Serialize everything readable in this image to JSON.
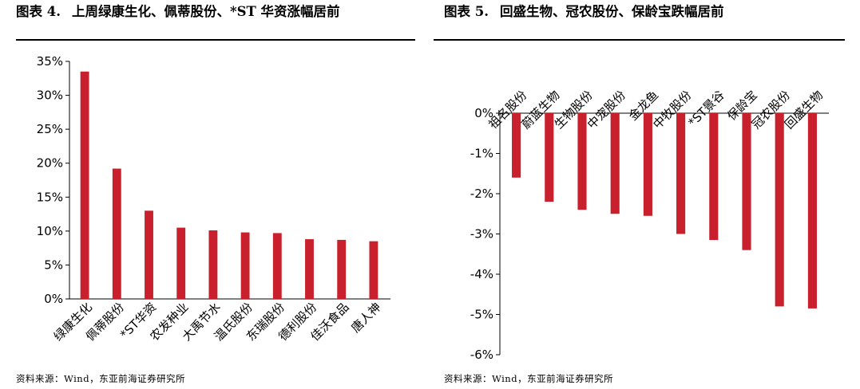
{
  "colors": {
    "bar": "#C8202C",
    "axis": "#000000"
  },
  "left": {
    "title_label": "图表 4.",
    "title_text": "上周绿康生化、佩蒂股份、*ST 华资涨幅居前",
    "source": "资料来源：Wind，东亚前海证券研究所"
  },
  "right": {
    "title_label": "图表 5.",
    "title_text": "回盛生物、冠农股份、保龄宝跌幅居前",
    "source": "资料来源：Wind，东亚前海证券研究所"
  },
  "chart_data": [
    {
      "type": "bar",
      "categories": [
        "绿康生化",
        "佩蒂股份",
        "*ST华资",
        "农发种业",
        "大禹节水",
        "温氏股份",
        "东瑞股份",
        "德利股份",
        "佳沃食品",
        "唐人神"
      ],
      "values": [
        33.5,
        19.2,
        13.0,
        10.5,
        10.1,
        9.8,
        9.7,
        8.8,
        8.7,
        8.5
      ],
      "ylim": [
        0,
        35
      ],
      "yticks": [
        0,
        5,
        10,
        15,
        20,
        25,
        30,
        35
      ],
      "ytick_labels": [
        "0%",
        "5%",
        "10%",
        "15%",
        "20%",
        "25%",
        "30%",
        "35%"
      ],
      "category_position": "bottom"
    },
    {
      "type": "bar",
      "categories": [
        "祖名股份",
        "蔚蓝生物",
        "生物股份",
        "中宠股份",
        "金龙鱼",
        "中牧股份",
        "*ST景谷",
        "保龄宝",
        "冠农股份",
        "回盛生物"
      ],
      "values": [
        -1.6,
        -2.2,
        -2.4,
        -2.5,
        -2.55,
        -3.0,
        -3.15,
        -3.4,
        -4.8,
        -4.85
      ],
      "ylim": [
        -6,
        0
      ],
      "yticks": [
        0,
        -1,
        -2,
        -3,
        -4,
        -5,
        -6
      ],
      "ytick_labels": [
        "0%",
        "-1%",
        "-2%",
        "-3%",
        "-4%",
        "-5%",
        "-6%"
      ],
      "category_position": "top"
    }
  ]
}
